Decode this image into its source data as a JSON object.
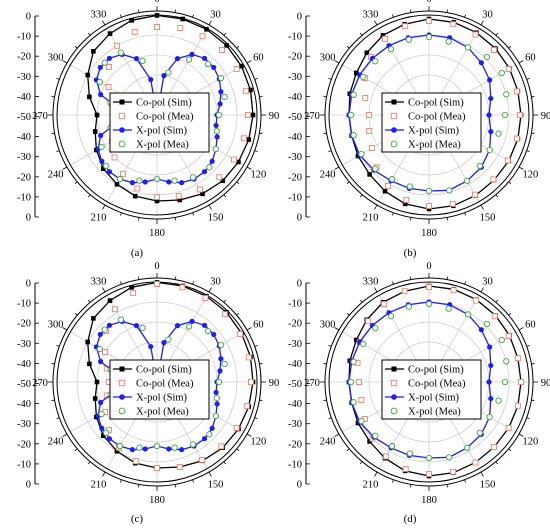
{
  "figure": {
    "panels": [
      {
        "caption": "(a)"
      },
      {
        "caption": "(b)"
      },
      {
        "caption": "(c)"
      },
      {
        "caption": "(d)"
      }
    ]
  },
  "chart_data": [
    {
      "type": "polar",
      "panel": "(a)",
      "radial_ticks": [
        "0",
        "-10",
        "-20",
        "-30",
        "-40",
        "-50",
        "-40",
        "-30",
        "-20",
        "-10",
        "0"
      ],
      "angle_ticks": [
        "0",
        "30",
        "60",
        "90",
        "120",
        "150",
        "180",
        "210",
        "240",
        "270",
        "300",
        "330"
      ],
      "rlim": [
        -50,
        0
      ],
      "grid": true,
      "legend_position": "center",
      "series": [
        {
          "name": "Co-pol (Sim)",
          "color": "#000000",
          "marker": "filled-square",
          "line": true,
          "angles": [
            0,
            15,
            30,
            45,
            60,
            75,
            90,
            105,
            120,
            135,
            150,
            165,
            180,
            195,
            210,
            225,
            240,
            255,
            270,
            285,
            300,
            315,
            330,
            345
          ],
          "values": [
            -0.2,
            -0.3,
            -0.5,
            -0.8,
            -1.2,
            -1.6,
            -2,
            -2.5,
            -3,
            -3.5,
            -4.5,
            -6,
            -7,
            -8,
            -10,
            -12,
            -15,
            -18,
            -20,
            -15,
            -10,
            -5,
            -3,
            -1
          ]
        },
        {
          "name": "Co-pol (Mea)",
          "color": "#f08070",
          "marker": "open-square",
          "line": false,
          "angles": [
            0,
            15,
            30,
            45,
            60,
            75,
            90,
            105,
            120,
            135,
            150,
            165,
            180,
            195,
            210,
            225,
            240,
            255,
            270,
            285,
            300,
            315,
            330,
            345
          ],
          "values": [
            -6,
            -5,
            -4.5,
            -4,
            -4,
            -4,
            -4.5,
            -5,
            -5.5,
            -6,
            -7,
            -8,
            -9,
            -12,
            -16,
            -20,
            -24,
            -27,
            -28,
            -26,
            -22,
            -16,
            -10,
            -7
          ]
        },
        {
          "name": "X-pol (Sim)",
          "color": "#1c1cff",
          "marker": "filled-circle",
          "line": true,
          "angles": [
            0,
            10,
            20,
            30,
            40,
            50,
            60,
            70,
            80,
            90,
            100,
            110,
            120,
            130,
            140,
            150,
            160,
            170,
            180,
            190,
            200,
            210,
            220,
            230,
            240,
            250,
            260,
            270,
            280,
            290,
            300,
            310,
            320,
            330,
            340,
            350
          ],
          "values": [
            -50,
            -30,
            -20,
            -15,
            -13,
            -13,
            -14,
            -16,
            -18,
            -20,
            -20,
            -18,
            -16,
            -14,
            -13,
            -13,
            -14,
            -16,
            -18,
            -16,
            -14,
            -13,
            -13,
            -14,
            -16,
            -20,
            -30,
            -45,
            -30,
            -20,
            -15,
            -13,
            -13,
            -15,
            -20,
            -32
          ]
        },
        {
          "name": "X-pol (Mea)",
          "color": "#3aa63a",
          "marker": "open-circle",
          "line": false,
          "angles": [
            15,
            30,
            45,
            60,
            75,
            90,
            105,
            120,
            135,
            150,
            165,
            180,
            195,
            210,
            225,
            240,
            255,
            285,
            300,
            315,
            330,
            345
          ],
          "values": [
            -28,
            -18,
            -14,
            -13,
            -15,
            -19,
            -19,
            -16,
            -13,
            -14,
            -16,
            -18,
            -16,
            -13,
            -14,
            -18,
            -26,
            -26,
            -17,
            -13,
            -14,
            -22
          ]
        }
      ]
    },
    {
      "type": "polar",
      "panel": "(b)",
      "radial_ticks": [
        "0",
        "-10",
        "-20",
        "-30",
        "-40",
        "-50",
        "-40",
        "-30",
        "-20",
        "-10",
        "0"
      ],
      "angle_ticks": [
        "0",
        "30",
        "60",
        "90",
        "120",
        "150",
        "180",
        "210",
        "240",
        "270",
        "300",
        "330"
      ],
      "rlim": [
        -50,
        0
      ],
      "grid": true,
      "legend_position": "center",
      "series": [
        {
          "name": "Co-pol (Sim)",
          "color": "#000000",
          "marker": "filled-square",
          "line": true,
          "angles": [
            0,
            15,
            30,
            45,
            60,
            75,
            90,
            105,
            120,
            135,
            150,
            165,
            180,
            195,
            210,
            225,
            240,
            255,
            270,
            285,
            300,
            315,
            330,
            345
          ],
          "values": [
            -2,
            -2,
            -2.5,
            -3,
            -3.5,
            -4,
            -4,
            -4,
            -4,
            -4,
            -3.5,
            -3,
            -3,
            -4,
            -6,
            -8,
            -9,
            -10,
            -10,
            -9,
            -8,
            -6,
            -4,
            -3
          ]
        },
        {
          "name": "Co-pol (Mea)",
          "color": "#f08070",
          "marker": "open-square",
          "line": false,
          "angles": [
            0,
            15,
            30,
            45,
            60,
            75,
            90,
            105,
            120,
            135,
            150,
            165,
            180,
            195,
            210,
            225,
            240,
            255,
            270,
            285,
            300,
            315,
            330,
            345
          ],
          "values": [
            -3,
            -3,
            -3.5,
            -4,
            -4,
            -4.5,
            -4.5,
            -4.5,
            -4.5,
            -4.5,
            -4,
            -4,
            -4.5,
            -6,
            -9,
            -13,
            -17,
            -19,
            -20,
            -17,
            -13,
            -9,
            -6,
            -4
          ]
        },
        {
          "name": "X-pol (Sim)",
          "color": "#1c1cff",
          "marker": "filled-circle",
          "line": true,
          "angles": [
            0,
            15,
            30,
            45,
            60,
            75,
            90,
            105,
            120,
            135,
            150,
            165,
            180,
            195,
            210,
            225,
            240,
            255,
            270,
            285,
            300,
            315,
            330,
            345
          ],
          "values": [
            -10,
            -10,
            -11,
            -13,
            -15,
            -18,
            -20,
            -18,
            -15,
            -13,
            -12,
            -11,
            -12,
            -12,
            -12,
            -11,
            -10,
            -10,
            -10,
            -10,
            -10,
            -10,
            -10,
            -10
          ]
        },
        {
          "name": "X-pol (Mea)",
          "color": "#3aa63a",
          "marker": "open-circle",
          "line": false,
          "angles": [
            0,
            15,
            30,
            45,
            60,
            75,
            90,
            105,
            120,
            135,
            150,
            165,
            180,
            195,
            210,
            225,
            240,
            255,
            270,
            285,
            300,
            315,
            330,
            345
          ],
          "values": [
            -11,
            -12,
            -11,
            -9,
            -8,
            -10,
            -12,
            -14,
            -15,
            -14,
            -12,
            -11,
            -12,
            -13,
            -13,
            -12,
            -11,
            -11,
            -11,
            -11,
            -12,
            -12,
            -12,
            -11
          ]
        }
      ]
    },
    {
      "type": "polar",
      "panel": "(c)",
      "radial_ticks": [
        "0",
        "-10",
        "-20",
        "-30",
        "-40",
        "-50",
        "-40",
        "-30",
        "-20",
        "-10",
        "0"
      ],
      "angle_ticks": [
        "0",
        "30",
        "60",
        "90",
        "120",
        "150",
        "180",
        "210",
        "240",
        "270",
        "300",
        "330"
      ],
      "rlim": [
        -50,
        0
      ],
      "grid": true,
      "legend_position": "center",
      "series": [
        {
          "name": "Co-pol (Sim)",
          "color": "#000000",
          "marker": "filled-square",
          "line": true,
          "angles": [
            0,
            15,
            30,
            45,
            60,
            75,
            90,
            105,
            120,
            135,
            150,
            165,
            180,
            195,
            210,
            225,
            240,
            255,
            270,
            285,
            300,
            315,
            330,
            345
          ],
          "values": [
            -0.2,
            -0.3,
            -0.5,
            -0.8,
            -1.2,
            -1.6,
            -2,
            -2.5,
            -3,
            -3.5,
            -4.5,
            -6,
            -7,
            -8,
            -10,
            -12,
            -15,
            -18,
            -20,
            -15,
            -10,
            -5,
            -3,
            -1
          ]
        },
        {
          "name": "Co-pol (Mea)",
          "color": "#f08070",
          "marker": "open-square",
          "line": false,
          "angles": [
            0,
            15,
            30,
            45,
            60,
            75,
            90,
            105,
            120,
            135,
            150,
            165,
            180,
            195,
            210,
            225,
            240,
            255,
            270,
            285,
            300,
            315,
            330,
            345
          ],
          "values": [
            -1,
            -1,
            -1.5,
            -2,
            -2,
            -2.5,
            -3,
            -3.5,
            -4,
            -4.5,
            -5,
            -6,
            -7,
            -9,
            -12,
            -16,
            -20,
            -24,
            -26,
            -24,
            -20,
            -14,
            -8,
            -4
          ]
        },
        {
          "name": "X-pol (Sim)",
          "color": "#1c1cff",
          "marker": "filled-circle",
          "line": true,
          "angles": [
            0,
            10,
            20,
            30,
            40,
            50,
            60,
            70,
            80,
            90,
            100,
            110,
            120,
            130,
            140,
            150,
            160,
            170,
            180,
            190,
            200,
            210,
            220,
            230,
            240,
            250,
            260,
            270,
            280,
            290,
            300,
            310,
            320,
            330,
            340,
            350
          ],
          "values": [
            -50,
            -30,
            -20,
            -15,
            -13,
            -13,
            -14,
            -16,
            -18,
            -20,
            -20,
            -18,
            -16,
            -14,
            -13,
            -13,
            -14,
            -16,
            -18,
            -16,
            -14,
            -13,
            -13,
            -14,
            -16,
            -20,
            -30,
            -45,
            -30,
            -20,
            -15,
            -13,
            -13,
            -15,
            -20,
            -32
          ]
        },
        {
          "name": "X-pol (Mea)",
          "color": "#3aa63a",
          "marker": "open-circle",
          "line": false,
          "angles": [
            15,
            30,
            45,
            60,
            75,
            90,
            105,
            120,
            135,
            150,
            165,
            180,
            195,
            210,
            225,
            240,
            255,
            285,
            300,
            315,
            330,
            345
          ],
          "values": [
            -28,
            -18,
            -14,
            -13,
            -15,
            -19,
            -19,
            -16,
            -13,
            -14,
            -16,
            -18,
            -16,
            -13,
            -14,
            -18,
            -26,
            -26,
            -17,
            -13,
            -14,
            -22
          ]
        }
      ]
    },
    {
      "type": "polar",
      "panel": "(d)",
      "radial_ticks": [
        "0",
        "-10",
        "-20",
        "-30",
        "-40",
        "-50",
        "-40",
        "-30",
        "-20",
        "-10",
        "0"
      ],
      "angle_ticks": [
        "0",
        "30",
        "60",
        "90",
        "120",
        "150",
        "180",
        "210",
        "240",
        "270",
        "300",
        "330"
      ],
      "rlim": [
        -50,
        0
      ],
      "grid": true,
      "legend_position": "center",
      "series": [
        {
          "name": "Co-pol (Sim)",
          "color": "#000000",
          "marker": "filled-square",
          "line": true,
          "angles": [
            0,
            15,
            30,
            45,
            60,
            75,
            90,
            105,
            120,
            135,
            150,
            165,
            180,
            195,
            210,
            225,
            240,
            255,
            270,
            285,
            300,
            315,
            330,
            345
          ],
          "values": [
            -2,
            -2,
            -2.5,
            -3,
            -3.5,
            -4,
            -4,
            -4,
            -4,
            -4,
            -3.5,
            -3,
            -3,
            -4,
            -6,
            -8,
            -9,
            -10,
            -10,
            -9,
            -8,
            -6,
            -4,
            -3
          ]
        },
        {
          "name": "Co-pol (Mea)",
          "color": "#f08070",
          "marker": "open-square",
          "line": false,
          "angles": [
            0,
            15,
            30,
            45,
            60,
            75,
            90,
            105,
            120,
            135,
            150,
            165,
            180,
            195,
            210,
            225,
            240,
            255,
            270,
            285,
            300,
            315,
            330,
            345
          ],
          "values": [
            -2.5,
            -2.5,
            -3,
            -3.5,
            -4,
            -4,
            -4,
            -4,
            -4,
            -4,
            -3.5,
            -3.5,
            -4,
            -5,
            -7,
            -10,
            -13,
            -15,
            -15,
            -13,
            -10,
            -7,
            -5,
            -3
          ]
        },
        {
          "name": "X-pol (Sim)",
          "color": "#1c1cff",
          "marker": "filled-circle",
          "line": true,
          "angles": [
            0,
            15,
            30,
            45,
            60,
            75,
            90,
            105,
            120,
            135,
            150,
            165,
            180,
            195,
            210,
            225,
            240,
            255,
            270,
            285,
            300,
            315,
            330,
            345
          ],
          "values": [
            -10,
            -10,
            -11,
            -13,
            -15,
            -18,
            -20,
            -18,
            -15,
            -13,
            -12,
            -11,
            -12,
            -12,
            -12,
            -11,
            -10,
            -10,
            -10,
            -10,
            -10,
            -10,
            -10,
            -10
          ]
        },
        {
          "name": "X-pol (Mea)",
          "color": "#3aa63a",
          "marker": "open-circle",
          "line": false,
          "angles": [
            0,
            15,
            30,
            45,
            60,
            75,
            90,
            105,
            120,
            135,
            150,
            165,
            180,
            195,
            210,
            225,
            240,
            255,
            270,
            285,
            300,
            315,
            330,
            345
          ],
          "values": [
            -11,
            -12,
            -11,
            -9,
            -8,
            -10,
            -12,
            -14,
            -15,
            -14,
            -12,
            -11,
            -12,
            -13,
            -13,
            -12,
            -11,
            -11,
            -11,
            -11,
            -12,
            -12,
            -12,
            -11
          ]
        }
      ]
    }
  ]
}
